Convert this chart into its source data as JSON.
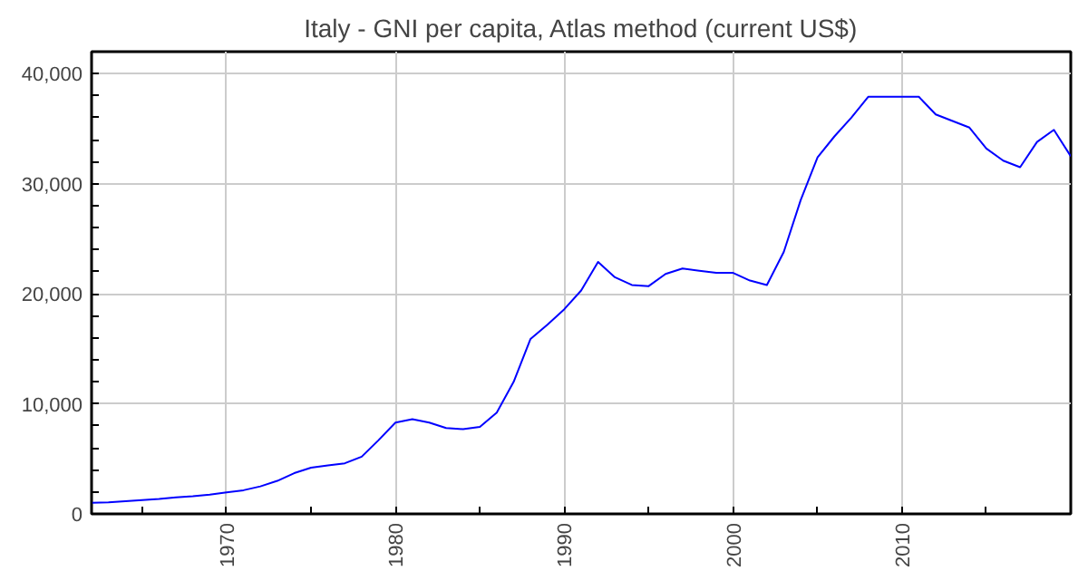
{
  "chart_data": {
    "type": "line",
    "title": "Italy - GNI per capita, Atlas method (current US$)",
    "x": [
      1962,
      1963,
      1964,
      1965,
      1966,
      1967,
      1968,
      1969,
      1970,
      1971,
      1972,
      1973,
      1974,
      1975,
      1976,
      1977,
      1978,
      1979,
      1980,
      1981,
      1982,
      1983,
      1984,
      1985,
      1986,
      1987,
      1988,
      1989,
      1990,
      1991,
      1992,
      1993,
      1994,
      1995,
      1996,
      1997,
      1998,
      1999,
      2000,
      2001,
      2002,
      2003,
      2004,
      2005,
      2006,
      2007,
      2008,
      2009,
      2010,
      2011,
      2012,
      2013,
      2014,
      2015,
      2016,
      2017,
      2018,
      2019,
      2020
    ],
    "series": [
      {
        "color": "#0000ff",
        "values": [
          1000,
          1050,
          1150,
          1250,
          1350,
          1500,
          1600,
          1750,
          1950,
          2150,
          2500,
          3000,
          3700,
          4200,
          4400,
          4600,
          5200,
          6700,
          8300,
          8600,
          8300,
          7800,
          7700,
          7900,
          9200,
          12000,
          15900,
          17200,
          18600,
          20300,
          22900,
          21500,
          20800,
          20700,
          21800,
          22300,
          22100,
          21900,
          21900,
          21200,
          20800,
          23800,
          28500,
          32400,
          34300,
          36000,
          37900,
          37900,
          37900,
          37900,
          36300,
          35700,
          35100,
          33200,
          32100,
          31500,
          33800,
          34900,
          32500
        ]
      }
    ],
    "xlim": [
      1962,
      2020
    ],
    "ylim": [
      0,
      42000
    ],
    "xticks": [
      {
        "value": 1965,
        "label": null
      },
      1970,
      {
        "value": 1975,
        "label": null
      },
      1980,
      {
        "value": 1985,
        "label": null
      },
      1990,
      {
        "value": 1995,
        "label": null
      },
      2000,
      {
        "value": 2005,
        "label": null
      },
      2010,
      {
        "value": 2015,
        "label": null
      }
    ],
    "yticks": [
      {
        "value": 0,
        "label": "0"
      },
      {
        "value": 2000,
        "label": null
      },
      {
        "value": 4000,
        "label": null
      },
      {
        "value": 6000,
        "label": null
      },
      {
        "value": 8000,
        "label": null
      },
      {
        "value": 10000,
        "label": "10,000"
      },
      {
        "value": 12000,
        "label": null
      },
      {
        "value": 14000,
        "label": null
      },
      {
        "value": 16000,
        "label": null
      },
      {
        "value": 18000,
        "label": null
      },
      {
        "value": 20000,
        "label": "20,000"
      },
      {
        "value": 22000,
        "label": null
      },
      {
        "value": 24000,
        "label": null
      },
      {
        "value": 26000,
        "label": null
      },
      {
        "value": 28000,
        "label": null
      },
      {
        "value": 30000,
        "label": "30,000"
      },
      {
        "value": 32000,
        "label": null
      },
      {
        "value": 34000,
        "label": null
      },
      {
        "value": 36000,
        "label": null
      },
      {
        "value": 38000,
        "label": null
      },
      {
        "value": 40000,
        "label": "40,000"
      }
    ],
    "grid": true,
    "line_style": "solid"
  }
}
